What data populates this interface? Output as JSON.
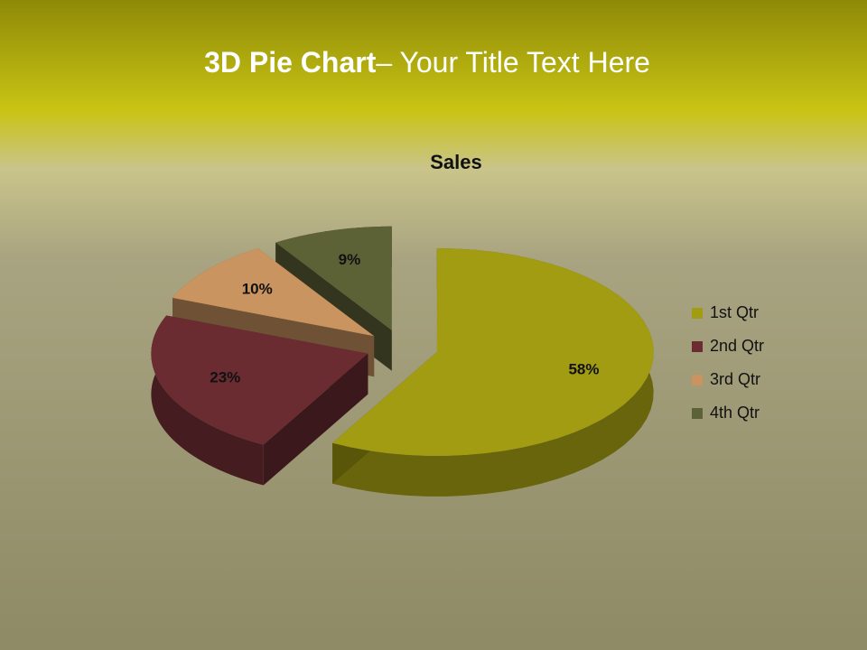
{
  "header": {
    "title_bold": "3D Pie Chart",
    "title_rest": "– Your Title Text Here"
  },
  "chart_data": {
    "type": "pie",
    "title": "Sales",
    "categories": [
      "1st Qtr",
      "2nd Qtr",
      "3rd Qtr",
      "4th Qtr"
    ],
    "values": [
      58,
      23,
      10,
      9
    ],
    "value_labels": [
      "58%",
      "23%",
      "10%",
      "9%"
    ],
    "colors": [
      "#a19c12",
      "#6a2c31",
      "#c99460",
      "#5d6136"
    ],
    "legend": "right"
  }
}
